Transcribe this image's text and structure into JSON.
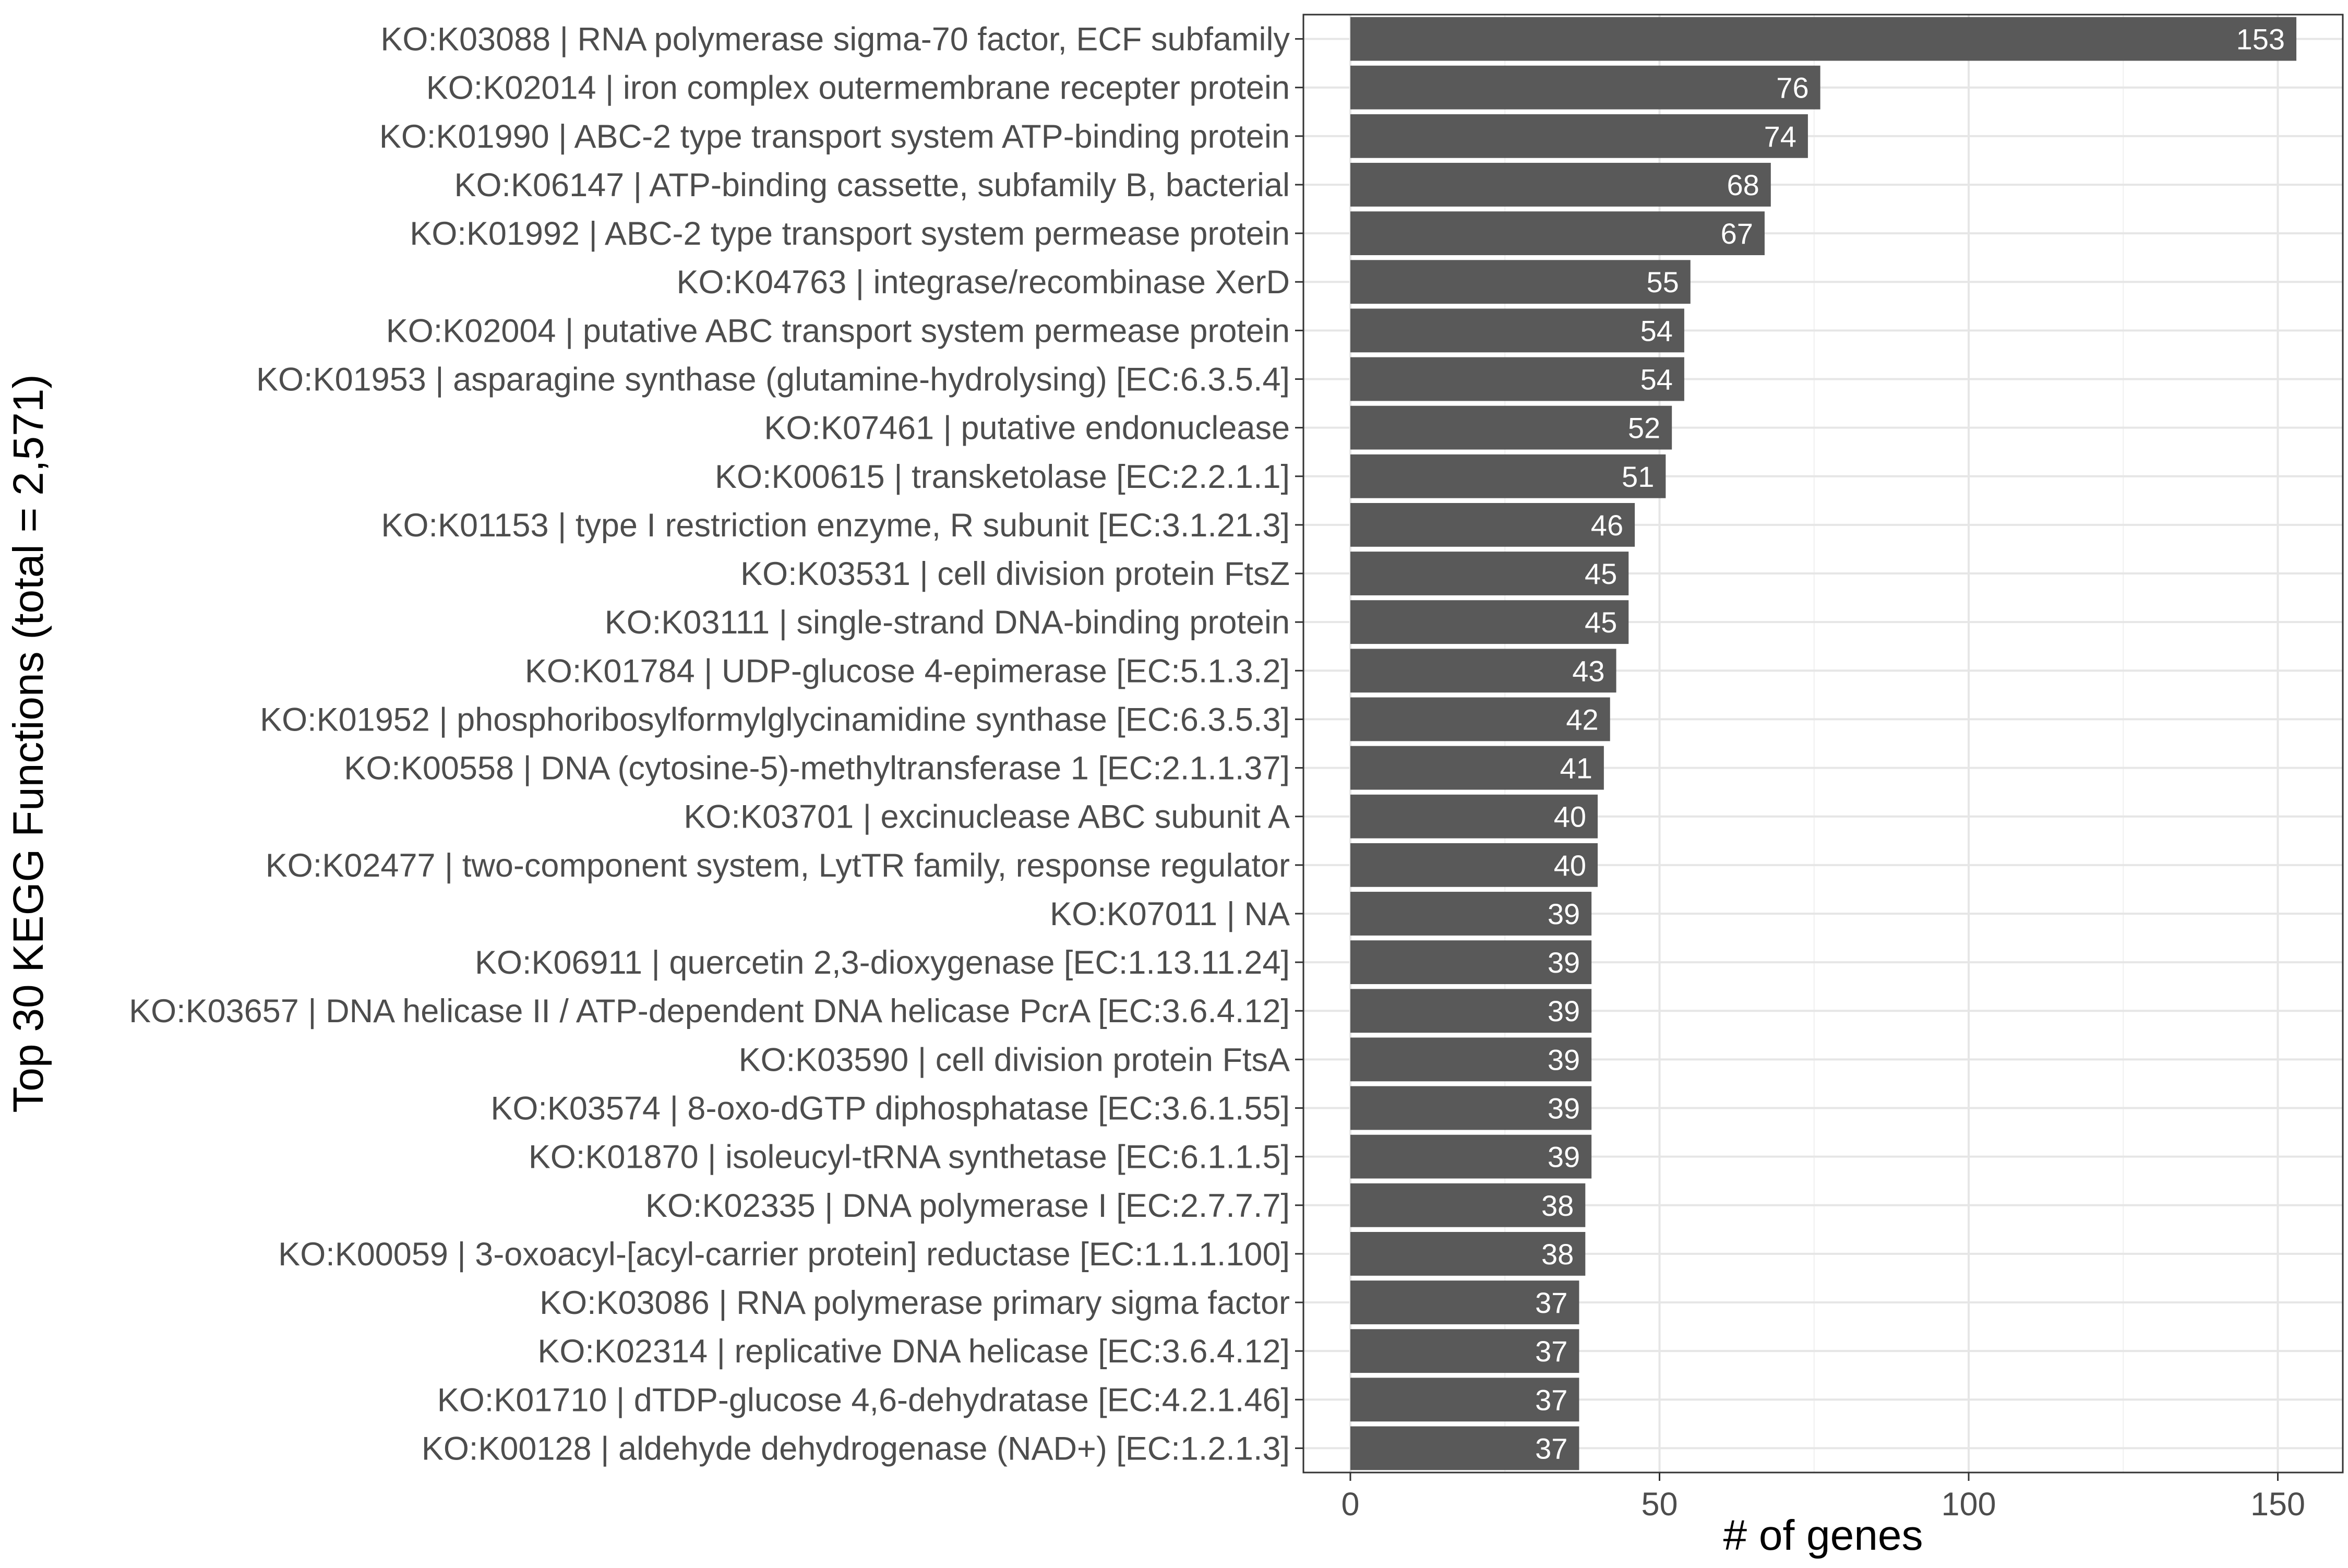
{
  "chart_data": {
    "type": "bar",
    "orientation": "horizontal",
    "xlabel": "# of genes",
    "ylabel": "Top 30 KEGG Functions (total = 2,571)",
    "xlim": [
      0,
      160
    ],
    "x_ticks": [
      0,
      50,
      100,
      150
    ],
    "grid": true,
    "bar_color": "#595959",
    "label_color": "#ffffff",
    "categories": [
      "KO:K03088 | RNA polymerase sigma-70 factor, ECF subfamily",
      "KO:K02014 | iron complex outermembrane recepter protein",
      "KO:K01990 | ABC-2 type transport system ATP-binding protein",
      "KO:K06147 | ATP-binding cassette, subfamily B, bacterial",
      "KO:K01992 | ABC-2 type transport system permease protein",
      "KO:K04763 | integrase/recombinase XerD",
      "KO:K02004 | putative ABC transport system permease protein",
      "KO:K01953 | asparagine synthase (glutamine-hydrolysing) [EC:6.3.5.4]",
      "KO:K07461 | putative endonuclease",
      "KO:K00615 | transketolase [EC:2.2.1.1]",
      "KO:K01153 | type I restriction enzyme, R subunit [EC:3.1.21.3]",
      "KO:K03531 | cell division protein FtsZ",
      "KO:K03111 | single-strand DNA-binding protein",
      "KO:K01784 | UDP-glucose 4-epimerase [EC:5.1.3.2]",
      "KO:K01952 | phosphoribosylformylglycinamidine synthase [EC:6.3.5.3]",
      "KO:K00558 | DNA (cytosine-5)-methyltransferase 1 [EC:2.1.1.37]",
      "KO:K03701 | excinuclease ABC subunit A",
      "KO:K02477 | two-component system, LytTR family, response regulator",
      "KO:K07011 | NA",
      "KO:K06911 | quercetin 2,3-dioxygenase [EC:1.13.11.24]",
      "KO:K03657 | DNA helicase II / ATP-dependent DNA helicase PcrA [EC:3.6.4.12]",
      "KO:K03590 | cell division protein FtsA",
      "KO:K03574 | 8-oxo-dGTP diphosphatase [EC:3.6.1.55]",
      "KO:K01870 | isoleucyl-tRNA synthetase [EC:6.1.1.5]",
      "KO:K02335 | DNA polymerase I [EC:2.7.7.7]",
      "KO:K00059 | 3-oxoacyl-[acyl-carrier protein] reductase [EC:1.1.1.100]",
      "KO:K03086 | RNA polymerase primary sigma factor",
      "KO:K02314 | replicative DNA helicase [EC:3.6.4.12]",
      "KO:K01710 | dTDP-glucose 4,6-dehydratase [EC:4.2.1.46]",
      "KO:K00128 | aldehyde dehydrogenase (NAD+) [EC:1.2.1.3]"
    ],
    "values": [
      153,
      76,
      74,
      68,
      67,
      55,
      54,
      54,
      52,
      51,
      46,
      45,
      45,
      43,
      42,
      41,
      40,
      40,
      39,
      39,
      39,
      39,
      39,
      39,
      38,
      38,
      37,
      37,
      37,
      37
    ]
  }
}
